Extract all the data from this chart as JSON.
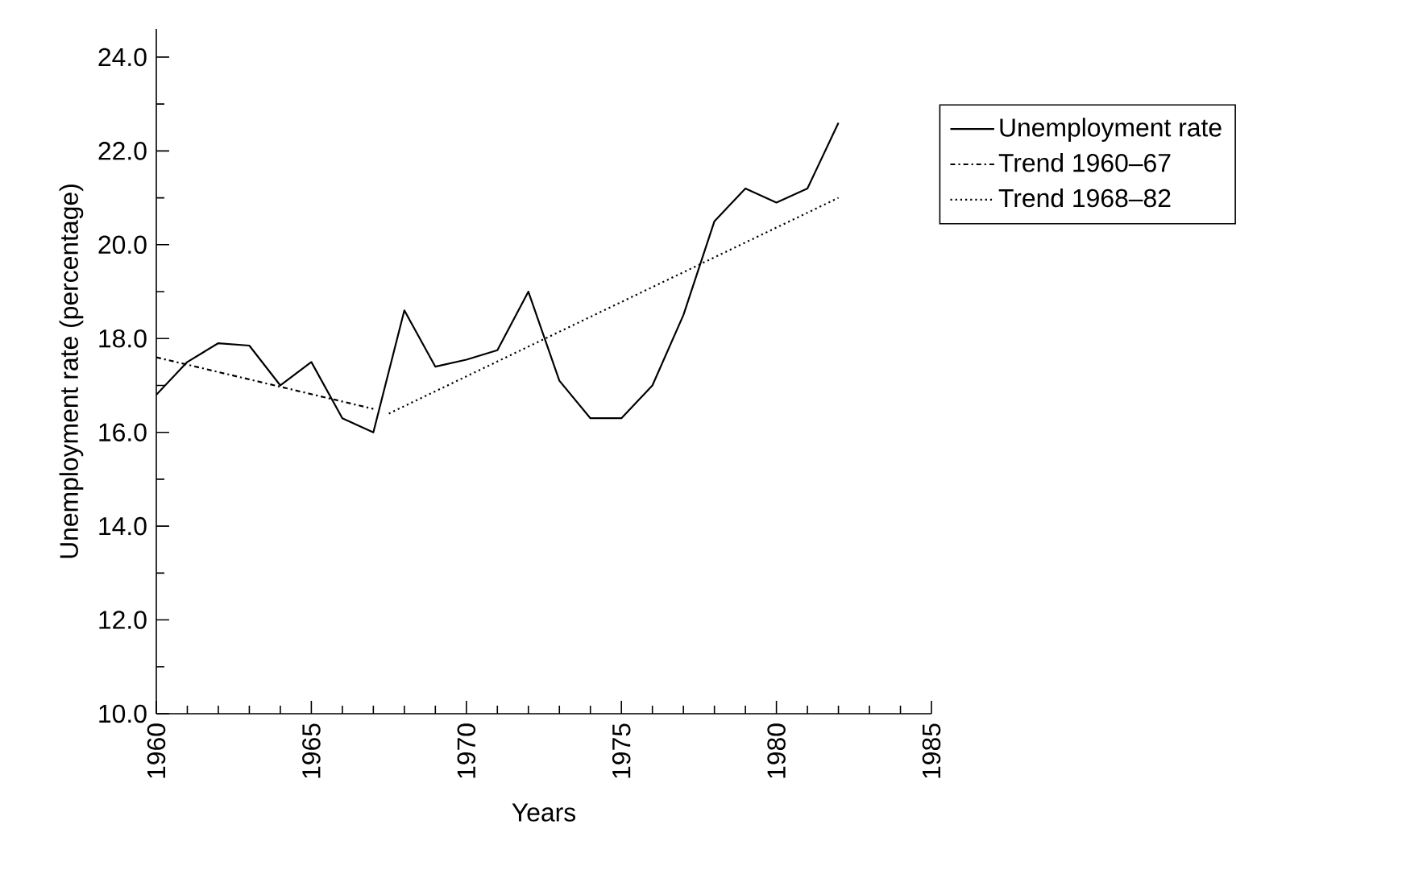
{
  "chart_data": {
    "type": "line",
    "xlabel": "Years",
    "ylabel": "Unemployment rate (percentage)",
    "xlim": [
      1960,
      1985
    ],
    "ylim": [
      10,
      24.6
    ],
    "xticks": [
      1960,
      1965,
      1970,
      1975,
      1980,
      1985
    ],
    "yticks": [
      {
        "value": 10,
        "label": "10.0"
      },
      {
        "value": 12,
        "label": "12.0"
      },
      {
        "value": 14,
        "label": "14.0"
      },
      {
        "value": 16,
        "label": "16.0"
      },
      {
        "value": 18,
        "label": "18.0"
      },
      {
        "value": 20,
        "label": "20.0"
      },
      {
        "value": 22,
        "label": "22.0"
      },
      {
        "value": 24,
        "label": "24.0"
      }
    ],
    "legend": "right",
    "grid": false,
    "marker": "none",
    "series": [
      {
        "name": "Unemployment rate",
        "color": "#000000",
        "line_style": "solid",
        "x": [
          1960,
          1961,
          1962,
          1963,
          1964,
          1965,
          1966,
          1967,
          1968,
          1969,
          1970,
          1971,
          1972,
          1973,
          1974,
          1975,
          1976,
          1977,
          1978,
          1979,
          1980,
          1981,
          1982
        ],
        "values": [
          16.8,
          17.5,
          17.9,
          17.85,
          17.0,
          17.5,
          16.3,
          16.0,
          18.6,
          17.4,
          17.55,
          17.75,
          19.0,
          17.1,
          16.3,
          16.3,
          17.0,
          18.5,
          20.5,
          21.2,
          20.9,
          21.2,
          22.6
        ]
      },
      {
        "name": "Trend 1960–67",
        "color": "#000000",
        "line_style": "dashdot",
        "x": [
          1960,
          1967
        ],
        "values": [
          17.6,
          16.5
        ]
      },
      {
        "name": "Trend 1968–82",
        "color": "#000000",
        "line_style": "dotted",
        "x": [
          1967.5,
          1982
        ],
        "values": [
          16.4,
          21.0
        ]
      }
    ]
  }
}
